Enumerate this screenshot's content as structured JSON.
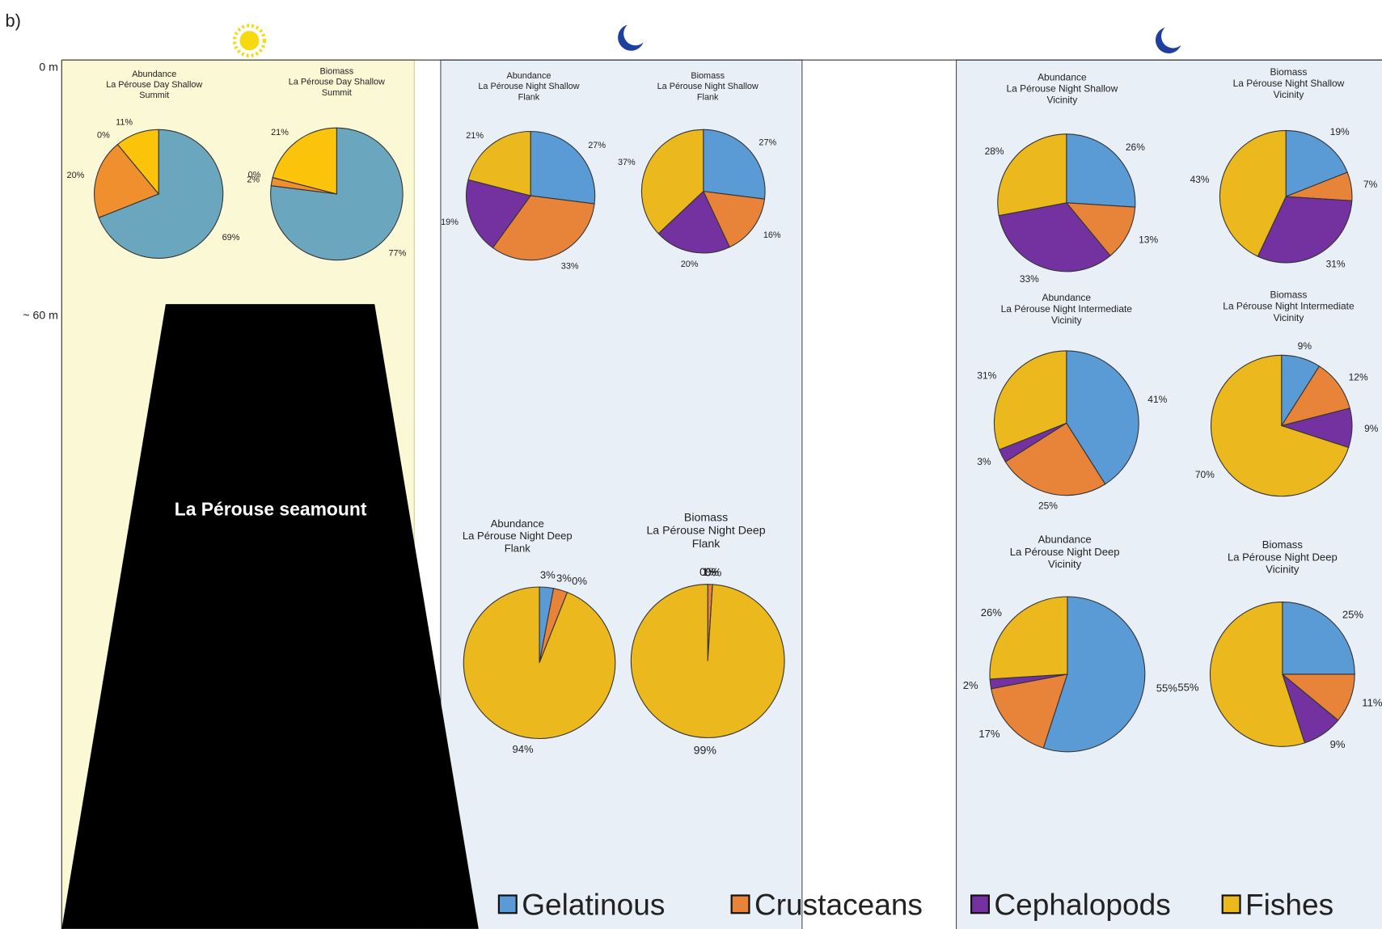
{
  "annotations": {
    "panel_label": "b)",
    "depth_labels": [
      "0 m",
      "~ 60 m"
    ],
    "seamount_label": "La Pérouse seamount"
  },
  "legend": {
    "categories": [
      "Gelatinous",
      "Crustaceans",
      "Cephalopods",
      "Fishes"
    ],
    "colors": [
      "#5b9bd5",
      "#e8843a",
      "#7432a0",
      "#ebb81e"
    ]
  },
  "chart_data": [
    {
      "type": "pie",
      "title": [
        "Abundance",
        "La Pérouse Day Shallow",
        "Summit"
      ],
      "values": [
        69,
        20,
        0,
        11
      ],
      "value_labels": [
        "69%",
        "20%",
        "0%",
        "11%"
      ],
      "colors": [
        "#6aa7bf",
        "#ef8f2e",
        "#7b3f9e",
        "#fcc30b"
      ]
    },
    {
      "type": "pie",
      "title": [
        "Biomass",
        "La Pérouse Day Shallow",
        "Summit"
      ],
      "values": [
        77,
        2,
        0,
        21
      ],
      "value_labels": [
        "77%",
        "2%",
        "0%",
        "21%"
      ],
      "colors": [
        "#6aa7bf",
        "#ef8f2e",
        "#7b3f9e",
        "#fcc30b"
      ]
    },
    {
      "type": "pie",
      "title": [
        "Abundance",
        "La Pérouse Night Shallow",
        "Flank"
      ],
      "values": [
        27,
        33,
        19,
        21
      ],
      "value_labels": [
        "27%",
        "33%",
        "19%",
        "21%"
      ],
      "colors": [
        "#5b9bd5",
        "#e8843a",
        "#7432a0",
        "#ebb81e"
      ]
    },
    {
      "type": "pie",
      "title": [
        "Biomass",
        "La Pérouse Night Shallow",
        "Flank"
      ],
      "values": [
        27,
        16,
        20,
        37
      ],
      "value_labels": [
        "27%",
        "16%",
        "20%",
        "37%"
      ],
      "colors": [
        "#5b9bd5",
        "#e8843a",
        "#7432a0",
        "#ebb81e"
      ]
    },
    {
      "type": "pie",
      "title": [
        "Abundance",
        "La Pérouse Night Shallow",
        "Vicinity"
      ],
      "values": [
        26,
        13,
        33,
        28
      ],
      "value_labels": [
        "26%",
        "13%",
        "33%",
        "28%"
      ],
      "colors": [
        "#5b9bd5",
        "#e8843a",
        "#7432a0",
        "#ebb81e"
      ]
    },
    {
      "type": "pie",
      "title": [
        "Biomass",
        "La Pérouse Night Shallow",
        "Vicinity"
      ],
      "values": [
        19,
        7,
        31,
        43
      ],
      "value_labels": [
        "19%",
        "7%",
        "31%",
        "43%"
      ],
      "colors": [
        "#5b9bd5",
        "#e8843a",
        "#7432a0",
        "#ebb81e"
      ]
    },
    {
      "type": "pie",
      "title": [
        "Abundance",
        "La Pérouse Night Intermediate",
        "Vicinity"
      ],
      "values": [
        41,
        25,
        3,
        31
      ],
      "value_labels": [
        "41%",
        "25%",
        "3%",
        "31%"
      ],
      "colors": [
        "#5b9bd5",
        "#e8843a",
        "#7432a0",
        "#ebb81e"
      ]
    },
    {
      "type": "pie",
      "title": [
        "Biomass",
        "La Pérouse Night Intermediate",
        "Vicinity"
      ],
      "values": [
        9,
        12,
        9,
        70
      ],
      "value_labels": [
        "9%",
        "12%",
        "9%",
        "70%"
      ],
      "colors": [
        "#5b9bd5",
        "#e8843a",
        "#7432a0",
        "#ebb81e"
      ]
    },
    {
      "type": "pie",
      "title": [
        "Abundance",
        "La Pérouse Night Deep",
        "Flank"
      ],
      "values": [
        3,
        3,
        0,
        94
      ],
      "value_labels": [
        "3%",
        "3%",
        "0%",
        "94%"
      ],
      "colors": [
        "#5b9bd5",
        "#e8843a",
        "#7432a0",
        "#ebb81e"
      ]
    },
    {
      "type": "pie",
      "title": [
        "Biomass",
        "La Pérouse Night Deep",
        "Flank"
      ],
      "values": [
        0,
        1,
        0,
        99
      ],
      "value_labels": [
        "0%",
        "1%",
        "0%",
        "99%"
      ],
      "colors": [
        "#5b9bd5",
        "#e8843a",
        "#7432a0",
        "#ebb81e"
      ]
    },
    {
      "type": "pie",
      "title": [
        "Abundance",
        "La Pérouse Night Deep",
        "Vicinity"
      ],
      "values": [
        55,
        17,
        2,
        26
      ],
      "value_labels": [
        "55%",
        "17%",
        "2%",
        "26%"
      ],
      "colors": [
        "#5b9bd5",
        "#e8843a",
        "#7432a0",
        "#ebb81e"
      ]
    },
    {
      "type": "pie",
      "title": [
        "Biomass",
        "La Pérouse Night Deep",
        "Vicinity"
      ],
      "values": [
        25,
        11,
        9,
        55
      ],
      "value_labels": [
        "25%",
        "11%",
        "9%",
        "55%"
      ],
      "colors": [
        "#5b9bd5",
        "#e8843a",
        "#7432a0",
        "#ebb81e"
      ]
    }
  ]
}
